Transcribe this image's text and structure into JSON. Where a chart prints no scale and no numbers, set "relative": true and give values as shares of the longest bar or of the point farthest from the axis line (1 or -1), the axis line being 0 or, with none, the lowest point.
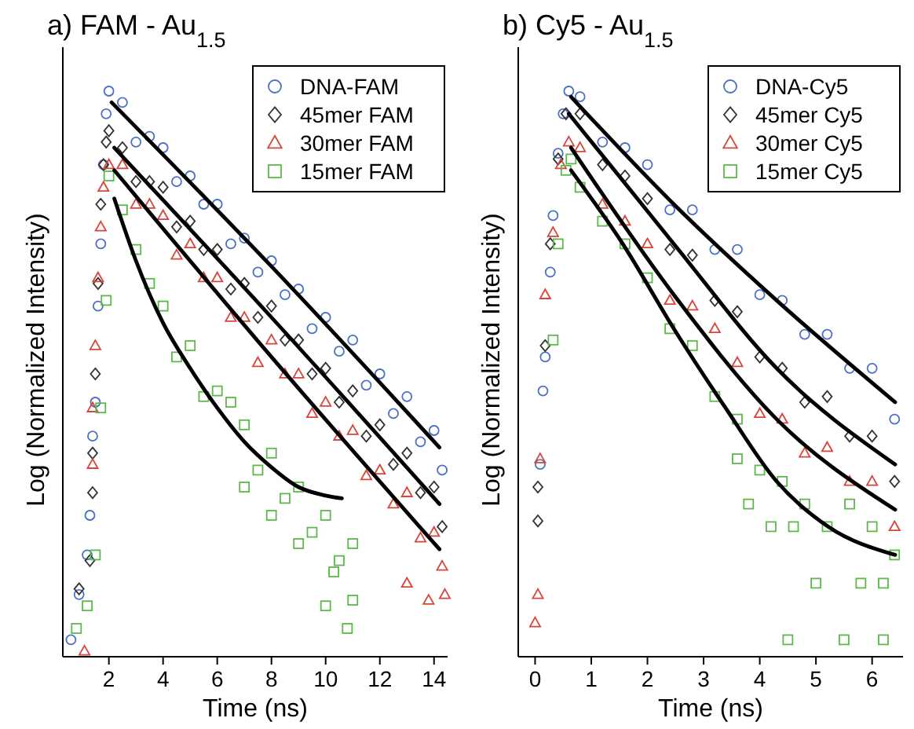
{
  "chart_data": [
    {
      "type": "scatter",
      "title": "a)  FAM - Au$_{1.5}$",
      "xlabel": "Time (ns)",
      "ylabel": "Log (Normalized Intensity)",
      "relative": true,
      "xlim": [
        0.3,
        14.5
      ],
      "xticks": [
        2,
        4,
        6,
        8,
        10,
        12,
        14
      ],
      "legend": "top right",
      "series": [
        {
          "name": "DNA-FAM",
          "color": "#4a6fc4",
          "marker": "circle",
          "x": [
            0.6,
            0.9,
            1.2,
            1.3,
            1.4,
            1.5,
            1.6,
            1.7,
            1.8,
            1.9,
            2.0,
            2.5,
            3,
            3.5,
            4,
            4.5,
            5,
            5.5,
            6,
            6.5,
            7,
            7.5,
            8,
            8.5,
            9,
            9.5,
            10,
            10.5,
            11,
            11.5,
            12,
            12.5,
            13,
            13.5,
            14,
            14.3
          ],
          "values": [
            0.03,
            0.11,
            0.18,
            0.25,
            0.39,
            0.45,
            0.62,
            0.73,
            0.87,
            0.96,
            1.0,
            0.98,
            0.91,
            0.92,
            0.9,
            0.84,
            0.85,
            0.8,
            0.8,
            0.73,
            0.74,
            0.68,
            0.7,
            0.64,
            0.65,
            0.58,
            0.6,
            0.54,
            0.56,
            0.48,
            0.5,
            0.43,
            0.46,
            0.38,
            0.4,
            0.33
          ]
        },
        {
          "name": "45mer FAM",
          "color": "#333333",
          "marker": "diamond",
          "x": [
            0.9,
            1.3,
            1.4,
            1.4,
            1.5,
            1.6,
            1.7,
            1.8,
            1.9,
            2.0,
            2.5,
            3,
            3.5,
            4,
            4.5,
            5,
            5.5,
            6,
            6.5,
            7,
            7.5,
            8,
            8.5,
            9,
            9.5,
            10,
            10.5,
            11,
            11.5,
            12,
            12.5,
            13,
            13.5,
            14,
            14.3
          ],
          "values": [
            0.12,
            0.17,
            0.29,
            0.36,
            0.5,
            0.66,
            0.8,
            0.87,
            0.91,
            0.93,
            0.9,
            0.84,
            0.84,
            0.83,
            0.76,
            0.77,
            0.72,
            0.72,
            0.65,
            0.66,
            0.6,
            0.62,
            0.56,
            0.56,
            0.5,
            0.51,
            0.45,
            0.47,
            0.39,
            0.41,
            0.34,
            0.36,
            0.29,
            0.3,
            0.23
          ]
        },
        {
          "name": "30mer FAM",
          "color": "#d9443a",
          "marker": "triangle",
          "x": [
            1.1,
            1.4,
            1.4,
            1.5,
            1.6,
            1.7,
            1.8,
            2.0,
            2.5,
            3,
            3.5,
            4,
            4.5,
            5,
            5.5,
            6,
            6.5,
            7,
            7.5,
            8,
            8.5,
            9,
            9.5,
            10,
            10.5,
            11,
            11.5,
            12,
            12.5,
            13,
            13.5,
            14,
            14.3,
            13,
            13.8,
            14.4
          ],
          "values": [
            0.01,
            0.34,
            0.44,
            0.55,
            0.67,
            0.76,
            0.83,
            0.87,
            0.87,
            0.8,
            0.8,
            0.78,
            0.71,
            0.73,
            0.67,
            0.67,
            0.6,
            0.6,
            0.52,
            0.56,
            0.5,
            0.5,
            0.43,
            0.45,
            0.39,
            0.4,
            0.32,
            0.33,
            0.27,
            0.29,
            0.21,
            0.22,
            0.16,
            0.13,
            0.1,
            0.11
          ]
        },
        {
          "name": "15mer FAM",
          "color": "#5cb84a",
          "marker": "square",
          "x": [
            0.8,
            1.2,
            1.5,
            1.7,
            1.9,
            2.0,
            2.5,
            3,
            3.5,
            4,
            4.5,
            5,
            5.5,
            6,
            6.5,
            7,
            7.5,
            8,
            8.5,
            9,
            9.5,
            10,
            10.5,
            11,
            8,
            9,
            10,
            10.8,
            10.3,
            11,
            7
          ],
          "values": [
            0.05,
            0.09,
            0.18,
            0.44,
            0.63,
            0.85,
            0.79,
            0.72,
            0.66,
            0.62,
            0.53,
            0.55,
            0.46,
            0.47,
            0.45,
            0.41,
            0.33,
            0.36,
            0.28,
            0.3,
            0.22,
            0.25,
            0.17,
            0.2,
            0.25,
            0.2,
            0.09,
            0.05,
            0.15,
            0.1,
            0.3
          ]
        },
        {
          "type": "line",
          "color": "#000000",
          "x": [
            2.1,
            8,
            14.2
          ],
          "values": [
            0.98,
            0.69,
            0.37
          ]
        },
        {
          "type": "line",
          "color": "#000000",
          "x": [
            2.2,
            8,
            14.2
          ],
          "values": [
            0.9,
            0.6,
            0.27
          ]
        },
        {
          "type": "line",
          "color": "#000000",
          "x": [
            2.2,
            8,
            14.2
          ],
          "values": [
            0.86,
            0.53,
            0.19
          ]
        },
        {
          "type": "line",
          "color": "#000000",
          "x": [
            2.2,
            3,
            4,
            5,
            6,
            7,
            8,
            9,
            10,
            10.6
          ],
          "values": [
            0.81,
            0.7,
            0.59,
            0.51,
            0.44,
            0.38,
            0.335,
            0.3,
            0.285,
            0.28
          ]
        }
      ]
    },
    {
      "type": "scatter",
      "title": "b)  Cy5 - Au$_{1.5}$",
      "xlabel": "Time (ns)",
      "ylabel": "Log (Normalized Intensity)",
      "relative": true,
      "xlim": [
        -0.3,
        6.55
      ],
      "xticks": [
        0,
        1,
        2,
        3,
        4,
        5,
        6
      ],
      "legend": "top right",
      "series": [
        {
          "name": "DNA-Cy5",
          "color": "#4a6fc4",
          "marker": "circle",
          "x": [
            0.09,
            0.14,
            0.18,
            0.27,
            0.32,
            0.41,
            0.5,
            0.6,
            0.8,
            1.2,
            1.6,
            2.0,
            2.4,
            2.8,
            3.2,
            3.6,
            4.0,
            4.4,
            4.8,
            5.2,
            5.6,
            6.0,
            6.4
          ],
          "values": [
            0.34,
            0.47,
            0.53,
            0.68,
            0.78,
            0.89,
            0.96,
            1.0,
            0.99,
            0.91,
            0.9,
            0.87,
            0.79,
            0.79,
            0.72,
            0.72,
            0.64,
            0.63,
            0.57,
            0.57,
            0.51,
            0.51,
            0.42
          ]
        },
        {
          "name": "45mer Cy5",
          "color": "#333333",
          "marker": "diamond",
          "x": [
            0.05,
            0.05,
            0.18,
            0.27,
            0.41,
            0.55,
            0.8,
            1.2,
            1.6,
            2.0,
            2.4,
            2.8,
            3.2,
            3.6,
            4.0,
            4.4,
            4.8,
            5.2,
            5.6,
            6.0,
            6.4
          ],
          "values": [
            0.24,
            0.3,
            0.55,
            0.73,
            0.88,
            0.96,
            0.96,
            0.87,
            0.85,
            0.81,
            0.72,
            0.71,
            0.63,
            0.61,
            0.53,
            0.51,
            0.45,
            0.46,
            0.39,
            0.39,
            0.31
          ]
        },
        {
          "name": "30mer Cy5",
          "color": "#d9443a",
          "marker": "triangle",
          "x": [
            0.0,
            0.05,
            0.09,
            0.18,
            0.32,
            0.46,
            0.6,
            0.8,
            1.2,
            1.6,
            2.0,
            2.4,
            2.8,
            3.2,
            3.6,
            4.0,
            4.4,
            4.8,
            5.2,
            5.6,
            6.0,
            6.4
          ],
          "values": [
            0.06,
            0.11,
            0.35,
            0.64,
            0.75,
            0.87,
            0.91,
            0.9,
            0.8,
            0.77,
            0.73,
            0.63,
            0.62,
            0.58,
            0.52,
            0.43,
            0.42,
            0.36,
            0.37,
            0.31,
            0.31,
            0.23
          ]
        },
        {
          "name": "15mer Cy5",
          "color": "#5cb84a",
          "marker": "square",
          "x": [
            0.32,
            0.41,
            0.55,
            0.64,
            0.8,
            1.2,
            1.6,
            2.0,
            2.4,
            2.8,
            3.2,
            3.6,
            4.0,
            4.4,
            4.8,
            5.2,
            5.6,
            6.0,
            6.4,
            3.8,
            4.6,
            5.0,
            5.8,
            6.2,
            4.5,
            5.5,
            6.2,
            3.6,
            4.2
          ],
          "values": [
            0.56,
            0.73,
            0.86,
            0.88,
            0.83,
            0.77,
            0.73,
            0.67,
            0.58,
            0.55,
            0.46,
            0.42,
            0.33,
            0.31,
            0.27,
            0.23,
            0.27,
            0.23,
            0.18,
            0.27,
            0.23,
            0.13,
            0.13,
            0.13,
            0.03,
            0.03,
            0.03,
            0.35,
            0.23
          ]
        },
        {
          "type": "line",
          "color": "#000000",
          "x": [
            0.64,
            2.47,
            4.3,
            6.41
          ],
          "values": [
            0.99,
            0.8,
            0.63,
            0.45
          ]
        },
        {
          "type": "line",
          "color": "#000000",
          "x": [
            0.6,
            2.47,
            4.3,
            6.41
          ],
          "values": [
            0.96,
            0.73,
            0.51,
            0.34
          ]
        },
        {
          "type": "line",
          "color": "#000000",
          "x": [
            0.64,
            2.47,
            4.3,
            6.41
          ],
          "values": [
            0.9,
            0.64,
            0.42,
            0.26
          ]
        },
        {
          "type": "line",
          "color": "#000000",
          "x": [
            0.64,
            1.56,
            2.47,
            3.39,
            4.3,
            5.22,
            6.41
          ],
          "values": [
            0.86,
            0.73,
            0.58,
            0.44,
            0.31,
            0.23,
            0.18
          ]
        }
      ]
    }
  ]
}
